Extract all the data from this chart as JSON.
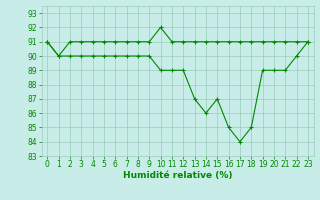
{
  "x": [
    0,
    1,
    2,
    3,
    4,
    5,
    6,
    7,
    8,
    9,
    10,
    11,
    12,
    13,
    14,
    15,
    16,
    17,
    18,
    19,
    20,
    21,
    22,
    23
  ],
  "line1": [
    91,
    90,
    91,
    91,
    91,
    91,
    91,
    91,
    91,
    91,
    92,
    91,
    91,
    91,
    91,
    91,
    91,
    91,
    91,
    91,
    91,
    91,
    91,
    91
  ],
  "line2": [
    91,
    90,
    90,
    90,
    90,
    90,
    90,
    90,
    90,
    90,
    89,
    89,
    89,
    87,
    86,
    87,
    85,
    84,
    85,
    89,
    89,
    89,
    90,
    91
  ],
  "line_color": "#008800",
  "bg_color": "#c8ede8",
  "grid_color": "#99ccbb",
  "xlabel": "Humidité relative (%)",
  "ylim": [
    83,
    93.5
  ],
  "xlim": [
    -0.5,
    23.5
  ],
  "xticks": [
    0,
    1,
    2,
    3,
    4,
    5,
    6,
    7,
    8,
    9,
    10,
    11,
    12,
    13,
    14,
    15,
    16,
    17,
    18,
    19,
    20,
    21,
    22,
    23
  ],
  "yticks": [
    83,
    84,
    85,
    86,
    87,
    88,
    89,
    90,
    91,
    92,
    93
  ],
  "marker": "+",
  "markersize": 3.5,
  "linewidth": 0.8,
  "tick_fontsize": 5.5,
  "xlabel_fontsize": 6.5
}
